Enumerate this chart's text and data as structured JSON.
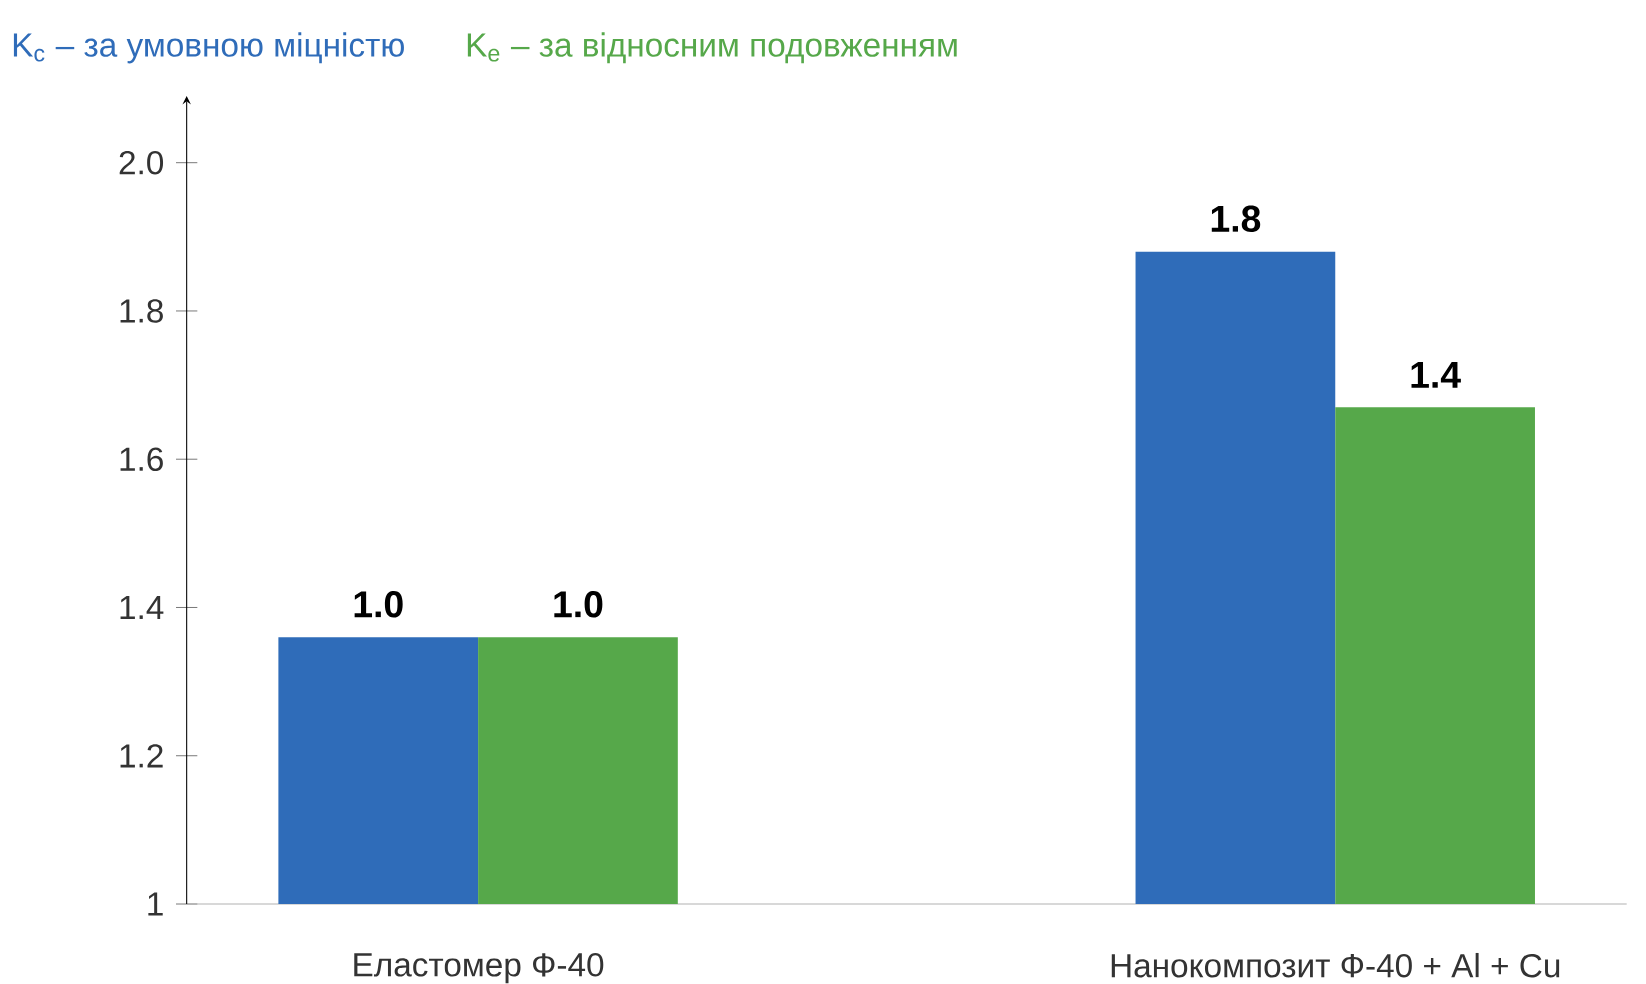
{
  "chart_data": {
    "type": "bar",
    "categories": [
      "Еластомер Ф-40",
      "Нанокомпозит Ф-40 + Al + Cu"
    ],
    "series": [
      {
        "name": "K$_{c}$ – за умовною міцністю",
        "color": "#2f6cb9",
        "values": [
          1.36,
          1.88
        ]
      },
      {
        "name": "K$_{e}$ – за відносним подовженням",
        "color": "#56a84a",
        "values": [
          1.36,
          1.67
        ]
      }
    ],
    "ylim": [
      1,
      2.09
    ],
    "yticks": [
      {
        "value": 1,
        "label": "1"
      },
      1.2,
      1.4,
      1.6,
      1.8,
      {
        "value": 2,
        "label": "2.0"
      }
    ],
    "annotations": [
      {
        "text": "1.0",
        "x": "Еластомер Ф-40",
        "y": 1.36
      },
      {
        "text": "1.0",
        "x": "Еластомер Ф-40",
        "y": 1.36
      },
      {
        "text": "1.8",
        "x": "Нанокомпозит Ф-40 + Al + Cu",
        "y": 1.88
      },
      {
        "text": "1.4",
        "x": "Нанокомпозит Ф-40 + Al + Cu",
        "y": 1.67
      }
    ],
    "legend": "top left"
  }
}
